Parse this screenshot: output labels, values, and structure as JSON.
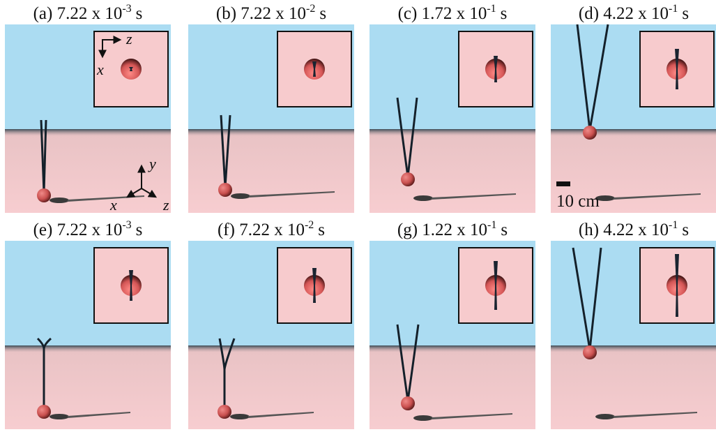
{
  "panels": [
    {
      "label": "(a) 7.22 x 10",
      "exponent": "-3",
      "unit": "s"
    },
    {
      "label": "(b) 7.22 x 10",
      "exponent": "-2",
      "unit": "s"
    },
    {
      "label": "(c) 1.72 x 10",
      "exponent": "-1",
      "unit": "s"
    },
    {
      "label": "(d) 4.22 x 10",
      "exponent": "-1",
      "unit": "s"
    },
    {
      "label": "(e) 7.22 x 10",
      "exponent": "-3",
      "unit": "s"
    },
    {
      "label": "(f) 7.22 x 10",
      "exponent": "-2",
      "unit": "s"
    },
    {
      "label": "(g) 1.22 x 10",
      "exponent": "-1",
      "unit": "s"
    },
    {
      "label": "(h) 4.22 x 10",
      "exponent": "-1",
      "unit": "s"
    }
  ],
  "inset_axes": {
    "horizontal": "z",
    "vertical": "x"
  },
  "axes_3d": {
    "up": "y",
    "left": "x",
    "right": "z"
  },
  "scale_bar": "10 cm"
}
